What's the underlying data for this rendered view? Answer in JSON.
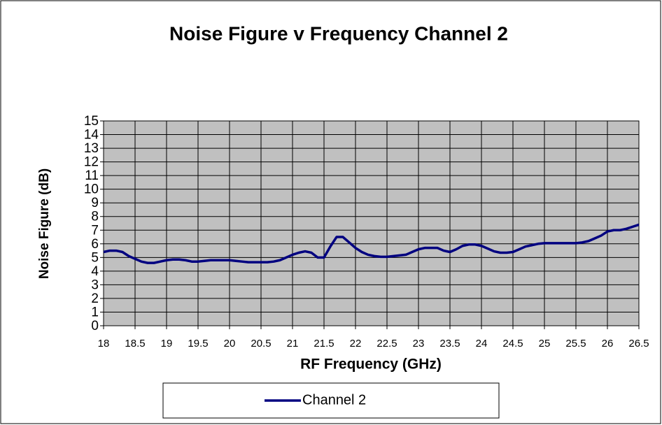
{
  "chart_data": {
    "type": "line",
    "title": "Noise Figure v Frequency Channel 2",
    "xlabel": "RF Frequency (GHz)",
    "ylabel": "Noise Figure (dB)",
    "x": [
      18,
      18.1,
      18.2,
      18.3,
      18.4,
      18.5,
      18.6,
      18.7,
      18.8,
      18.9,
      19,
      19.1,
      19.2,
      19.3,
      19.4,
      19.5,
      19.6,
      19.7,
      19.8,
      19.9,
      20,
      20.1,
      20.2,
      20.3,
      20.4,
      20.5,
      20.6,
      20.7,
      20.8,
      20.9,
      21,
      21.1,
      21.2,
      21.3,
      21.4,
      21.5,
      21.6,
      21.7,
      21.8,
      21.9,
      22,
      22.1,
      22.2,
      22.3,
      22.4,
      22.5,
      22.6,
      22.7,
      22.8,
      22.9,
      23,
      23.1,
      23.2,
      23.3,
      23.4,
      23.5,
      23.6,
      23.7,
      23.8,
      23.9,
      24,
      24.1,
      24.2,
      24.3,
      24.4,
      24.5,
      24.6,
      24.7,
      24.8,
      24.9,
      25,
      25.1,
      25.2,
      25.3,
      25.4,
      25.5,
      25.6,
      25.7,
      25.8,
      25.9,
      26,
      26.1,
      26.2,
      26.3,
      26.4,
      26.5
    ],
    "series": [
      {
        "name": "Channel 2",
        "color": "#000080",
        "values": [
          5.4,
          5.5,
          5.5,
          5.4,
          5.1,
          4.9,
          4.7,
          4.6,
          4.6,
          4.7,
          4.8,
          4.85,
          4.85,
          4.8,
          4.7,
          4.7,
          4.75,
          4.8,
          4.8,
          4.8,
          4.8,
          4.75,
          4.7,
          4.65,
          4.65,
          4.65,
          4.65,
          4.7,
          4.8,
          5.0,
          5.2,
          5.35,
          5.45,
          5.35,
          5.0,
          5.0,
          5.8,
          6.5,
          6.5,
          6.1,
          5.7,
          5.4,
          5.2,
          5.1,
          5.05,
          5.05,
          5.1,
          5.15,
          5.2,
          5.4,
          5.6,
          5.7,
          5.7,
          5.7,
          5.5,
          5.4,
          5.6,
          5.85,
          5.95,
          5.95,
          5.85,
          5.65,
          5.45,
          5.35,
          5.35,
          5.4,
          5.6,
          5.8,
          5.9,
          6.0,
          6.05,
          6.05,
          6.05,
          6.05,
          6.05,
          6.05,
          6.1,
          6.2,
          6.4,
          6.6,
          6.9,
          7.0,
          7.0,
          7.1,
          7.25,
          7.4
        ]
      }
    ],
    "xlim": [
      18,
      26.5
    ],
    "xticks": [
      18,
      18.5,
      19,
      19.5,
      20,
      20.5,
      21,
      21.5,
      22,
      22.5,
      23,
      23.5,
      24,
      24.5,
      25,
      25.5,
      26,
      26.5
    ],
    "ylim": [
      0,
      15
    ],
    "yticks": [
      0,
      1,
      2,
      3,
      4,
      5,
      6,
      7,
      8,
      9,
      10,
      11,
      12,
      13,
      14,
      15
    ],
    "grid": true,
    "plot_background": "#c0c0c0"
  }
}
